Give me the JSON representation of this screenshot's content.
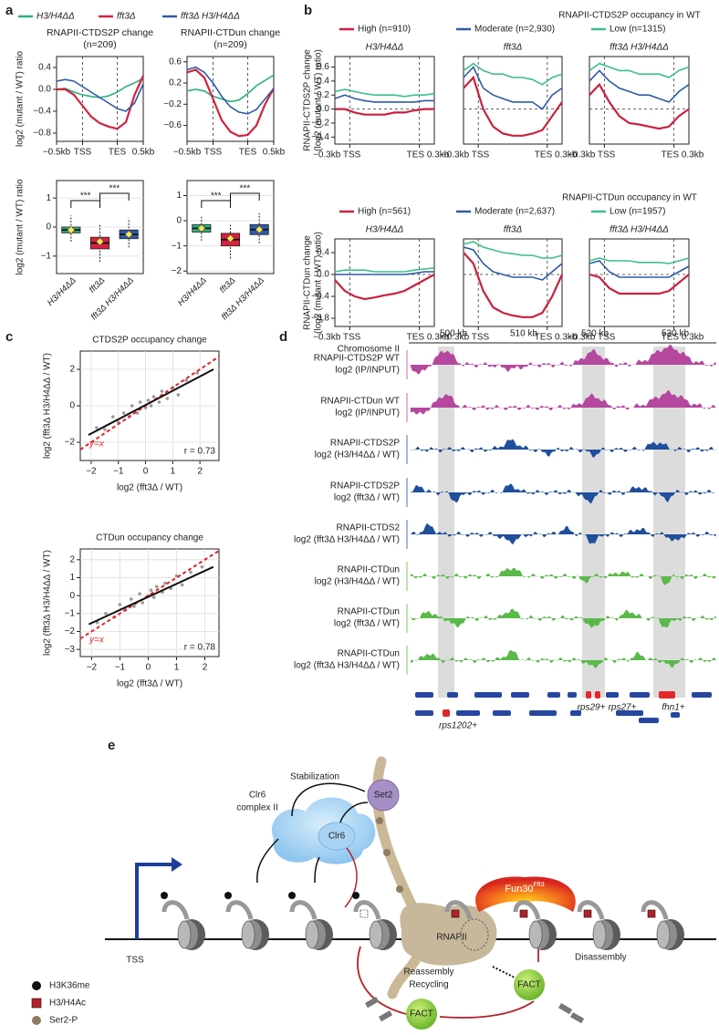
{
  "panel_labels": [
    "a",
    "b",
    "c",
    "d",
    "e"
  ],
  "chart_data": [
    {
      "type": "line",
      "title": "RNAPII-CTDS2P change",
      "subtitle": "(n=209)",
      "ylabel": "log2 (mutant / WT) ratio",
      "x": [
        0,
        1,
        2,
        3,
        4,
        5,
        6,
        7,
        8,
        9,
        10
      ],
      "xlim": [
        0,
        10
      ],
      "xticks": [
        {
          "value": 0,
          "label": "−0.5kb"
        },
        {
          "value": 3,
          "label": "TSS"
        },
        {
          "value": 7,
          "label": "TES"
        },
        {
          "value": 10,
          "label": "0.5kb"
        }
      ],
      "ylim": [
        -0.95,
        0.6
      ],
      "yticks": [
        0.4,
        {
          "value": 0,
          "label": "0.0"
        },
        {
          "value": -0.4,
          "label": "−0.4"
        },
        {
          "value": -0.8,
          "label": "−0.8"
        }
      ],
      "series": [
        {
          "name": "H3/H4ΔΔ",
          "color": "#2bb07f",
          "values": [
            0.0,
            0.02,
            -0.05,
            -0.1,
            -0.13,
            -0.15,
            -0.12,
            -0.05,
            0.05,
            0.12,
            0.2
          ]
        },
        {
          "name": "fft3Δ",
          "color": "#d6213f",
          "values": [
            0.0,
            0.0,
            -0.1,
            -0.3,
            -0.5,
            -0.62,
            -0.68,
            -0.72,
            -0.6,
            -0.1,
            0.25
          ]
        },
        {
          "name": "fft3Δ H3/H4ΔΔ",
          "color": "#2f5aa8",
          "values": [
            0.15,
            0.18,
            0.15,
            0.05,
            -0.05,
            -0.15,
            -0.25,
            -0.35,
            -0.4,
            -0.25,
            0.1
          ]
        }
      ]
    },
    {
      "type": "line",
      "title": "RNAPII-CTDun change",
      "subtitle": "(n=209)",
      "x": [
        0,
        1,
        2,
        3,
        4,
        5,
        6,
        7,
        8,
        9,
        10
      ],
      "xlim": [
        0,
        10
      ],
      "xticks": [
        {
          "value": 0,
          "label": "−0.5kb"
        },
        {
          "value": 3,
          "label": "TSS"
        },
        {
          "value": 7,
          "label": "TES"
        },
        {
          "value": 10,
          "label": "0.5kb"
        }
      ],
      "ylim": [
        -0.9,
        0.7
      ],
      "yticks": [
        0.6,
        0.2,
        {
          "value": -0.2,
          "label": "−0.2"
        },
        {
          "value": -0.6,
          "label": "−0.6"
        }
      ],
      "series": [
        {
          "color": "#2bb07f",
          "values": [
            0.05,
            0.08,
            0.05,
            -0.05,
            -0.1,
            -0.15,
            -0.12,
            0.0,
            0.15,
            0.25,
            0.35
          ]
        },
        {
          "color": "#d6213f",
          "values": [
            0.4,
            0.45,
            0.3,
            -0.1,
            -0.5,
            -0.72,
            -0.8,
            -0.78,
            -0.6,
            -0.2,
            0.1
          ]
        },
        {
          "color": "#2f5aa8",
          "values": [
            0.45,
            0.5,
            0.4,
            0.2,
            -0.05,
            -0.25,
            -0.35,
            -0.38,
            -0.3,
            -0.1,
            0.1
          ]
        }
      ]
    },
    {
      "type": "box",
      "ylabel": "log2 (mutant / WT) ratio",
      "categories": [
        "H3/H4ΔΔ",
        "fft3Δ",
        "fft3Δ H3/H4ΔΔ"
      ],
      "ylim": [
        -1.6,
        1.6
      ],
      "yticks": [
        1,
        0,
        {
          "value": -1,
          "label": "−1"
        }
      ],
      "annotations": [
        "***",
        "***"
      ],
      "boxes": [
        {
          "color": "#2bb07f",
          "min": -0.5,
          "q1": -0.2,
          "median": -0.1,
          "q3": 0.0,
          "max": 0.4,
          "mean": -0.1
        },
        {
          "color": "#d6213f",
          "min": -1.2,
          "q1": -0.75,
          "median": -0.55,
          "q3": -0.35,
          "max": 0.1,
          "mean": -0.5
        },
        {
          "color": "#2f5aa8",
          "min": -0.7,
          "q1": -0.4,
          "median": -0.25,
          "q3": -0.1,
          "max": 0.3,
          "mean": -0.25
        }
      ]
    },
    {
      "type": "box",
      "categories": [
        "H3/H4ΔΔ",
        "fft3Δ",
        "fft3Δ H3/H4ΔΔ"
      ],
      "ylim": [
        -2.1,
        1.6
      ],
      "yticks": [
        1,
        0,
        {
          "value": -1,
          "label": "−1"
        },
        {
          "value": -2,
          "label": "−2"
        }
      ],
      "annotations": [
        "***",
        "***"
      ],
      "boxes": [
        {
          "color": "#2bb07f",
          "min": -0.8,
          "q1": -0.45,
          "median": -0.3,
          "q3": -0.15,
          "max": 0.2,
          "mean": -0.3
        },
        {
          "color": "#d6213f",
          "min": -1.5,
          "q1": -1.0,
          "median": -0.75,
          "q3": -0.5,
          "max": -0.1,
          "mean": -0.7
        },
        {
          "color": "#2f5aa8",
          "min": -0.9,
          "q1": -0.55,
          "median": -0.35,
          "q3": -0.15,
          "max": 0.3,
          "mean": -0.35
        }
      ]
    },
    {
      "type": "line",
      "title": "H3/H4ΔΔ",
      "legend_title": "RNAPII-CTDS2P occupancy in WT",
      "ylabel": [
        "RNAPII-CTDS2P change",
        "(log2 (mutant / WT) ratio)"
      ],
      "ref_line": 0,
      "x": [
        0,
        1,
        2,
        3,
        4,
        5,
        6,
        7,
        8,
        9,
        10
      ],
      "xlim": [
        0,
        10
      ],
      "xticks": [
        {
          "value": 1.5,
          "label": "−0.3kb TSS"
        },
        {
          "value": 8.5,
          "label": "TES 0.3kb"
        }
      ],
      "ylim": [
        -0.5,
        0.75
      ],
      "yticks": [
        0.6,
        0.4,
        0.2,
        {
          "value": 0,
          "label": "0.0"
        },
        {
          "value": -0.2,
          "label": "−0.2"
        },
        {
          "value": -0.4,
          "label": "−0.4"
        }
      ],
      "series": [
        {
          "name": "High (n=910)",
          "color": "#c8213f",
          "values": [
            0.0,
            0.0,
            -0.05,
            -0.08,
            -0.08,
            -0.08,
            -0.05,
            -0.05,
            -0.02,
            0.0,
            0.0
          ]
        },
        {
          "name": "Moderate (n=2,930)",
          "color": "#2f5aa8",
          "values": [
            0.15,
            0.2,
            0.15,
            0.12,
            0.1,
            0.1,
            0.1,
            0.1,
            0.1,
            0.12,
            0.12
          ]
        },
        {
          "name": "Low (n=1315)",
          "color": "#3cbf8c",
          "values": [
            0.25,
            0.28,
            0.25,
            0.22,
            0.2,
            0.2,
            0.2,
            0.18,
            0.2,
            0.2,
            0.22
          ]
        }
      ]
    },
    {
      "type": "line",
      "title": "fft3Δ",
      "ref_line": 0,
      "x": [
        0,
        1,
        2,
        3,
        4,
        5,
        6,
        7,
        8,
        9,
        10
      ],
      "xlim": [
        0,
        10
      ],
      "xticks": [
        {
          "value": 1.5,
          "label": "−0.3kb TSS"
        },
        {
          "value": 8.5,
          "label": "TES 0.3kb"
        }
      ],
      "ylim": [
        -0.5,
        0.75
      ],
      "series": [
        {
          "color": "#c8213f",
          "values": [
            0.3,
            0.45,
            0.0,
            -0.25,
            -0.35,
            -0.38,
            -0.38,
            -0.35,
            -0.3,
            -0.1,
            0.1
          ]
        },
        {
          "color": "#2f5aa8",
          "values": [
            0.45,
            0.6,
            0.3,
            0.2,
            0.15,
            0.1,
            0.1,
            0.1,
            0.0,
            0.2,
            0.3
          ]
        },
        {
          "color": "#3cbf8c",
          "values": [
            0.55,
            0.65,
            0.55,
            0.5,
            0.5,
            0.45,
            0.45,
            0.42,
            0.35,
            0.45,
            0.5
          ]
        }
      ]
    },
    {
      "type": "line",
      "title": "fft3Δ H3/H4ΔΔ",
      "ref_line": 0,
      "x": [
        0,
        1,
        2,
        3,
        4,
        5,
        6,
        7,
        8,
        9,
        10
      ],
      "xlim": [
        0,
        10
      ],
      "xticks": [
        {
          "value": 1.5,
          "label": "−0.3kb TSS"
        },
        {
          "value": 8.5,
          "label": "TES 0.3kb"
        }
      ],
      "ylim": [
        -0.5,
        0.75
      ],
      "series": [
        {
          "color": "#c8213f",
          "values": [
            0.2,
            0.35,
            0.1,
            -0.1,
            -0.2,
            -0.22,
            -0.25,
            -0.28,
            -0.25,
            -0.1,
            0.0
          ]
        },
        {
          "color": "#2f5aa8",
          "values": [
            0.4,
            0.55,
            0.4,
            0.3,
            0.25,
            0.2,
            0.2,
            0.15,
            0.1,
            0.25,
            0.35
          ]
        },
        {
          "color": "#3cbf8c",
          "values": [
            0.55,
            0.65,
            0.6,
            0.55,
            0.55,
            0.5,
            0.5,
            0.5,
            0.45,
            0.55,
            0.6
          ]
        }
      ]
    },
    {
      "type": "line",
      "title": "H3/H4ΔΔ",
      "legend_title": "RNAPII-CTDun occupancy in WT",
      "ylabel": [
        "RNAPII-CTDun change",
        "(log2 (mutant / WT) ratio)"
      ],
      "ref_line": 0,
      "x": [
        0,
        1,
        2,
        3,
        4,
        5,
        6,
        7,
        8,
        9,
        10
      ],
      "xlim": [
        0,
        10
      ],
      "xticks": [
        {
          "value": 1.5,
          "label": "−0.3kb TSS"
        },
        {
          "value": 8.5,
          "label": "TES 0.3kb"
        }
      ],
      "ylim": [
        -0.95,
        0.65
      ],
      "yticks": [
        0.4,
        {
          "value": 0,
          "label": "0.0"
        },
        {
          "value": -0.4,
          "label": "−0.4"
        },
        {
          "value": -0.8,
          "label": "−0.8"
        }
      ],
      "series": [
        {
          "name": "High (n=561)",
          "color": "#c8213f",
          "values": [
            -0.1,
            -0.3,
            -0.4,
            -0.45,
            -0.42,
            -0.38,
            -0.35,
            -0.3,
            -0.2,
            -0.1,
            0.0
          ]
        },
        {
          "name": "Moderate (n=2,637)",
          "color": "#2f5aa8",
          "values": [
            0.0,
            0.0,
            0.0,
            0.0,
            0.0,
            0.0,
            0.0,
            0.0,
            0.02,
            0.05,
            0.05
          ]
        },
        {
          "name": "Low (n=1957)",
          "color": "#3cbf8c",
          "values": [
            0.05,
            0.08,
            0.08,
            0.08,
            0.05,
            0.05,
            0.05,
            0.05,
            0.08,
            0.1,
            0.12
          ]
        }
      ]
    },
    {
      "type": "line",
      "title": "fft3Δ",
      "ref_line": 0,
      "x": [
        0,
        1,
        2,
        3,
        4,
        5,
        6,
        7,
        8,
        9,
        10
      ],
      "xlim": [
        0,
        10
      ],
      "xticks": [
        {
          "value": 1.5,
          "label": "−0.3kb TSS"
        },
        {
          "value": 8.5,
          "label": "TES 0.3kb"
        }
      ],
      "ylim": [
        -0.95,
        0.65
      ],
      "series": [
        {
          "color": "#c8213f",
          "values": [
            0.4,
            0.2,
            -0.3,
            -0.6,
            -0.7,
            -0.75,
            -0.78,
            -0.78,
            -0.7,
            -0.4,
            0.0
          ]
        },
        {
          "color": "#2f5aa8",
          "values": [
            0.5,
            0.45,
            0.2,
            0.05,
            0.0,
            -0.05,
            -0.05,
            -0.05,
            -0.1,
            0.05,
            0.2
          ]
        },
        {
          "color": "#3cbf8c",
          "values": [
            0.55,
            0.6,
            0.5,
            0.45,
            0.4,
            0.38,
            0.35,
            0.35,
            0.3,
            0.3,
            0.35
          ]
        }
      ]
    },
    {
      "type": "line",
      "title": "fft3Δ H3/H4ΔΔ",
      "ref_line": 0,
      "x": [
        0,
        1,
        2,
        3,
        4,
        5,
        6,
        7,
        8,
        9,
        10
      ],
      "xlim": [
        0,
        10
      ],
      "xticks": [
        {
          "value": 1.5,
          "label": "−0.3kb TSS"
        },
        {
          "value": 8.5,
          "label": "TES 0.3kb"
        }
      ],
      "ylim": [
        -0.95,
        0.65
      ],
      "series": [
        {
          "color": "#c8213f",
          "values": [
            0.0,
            -0.05,
            -0.25,
            -0.35,
            -0.35,
            -0.35,
            -0.35,
            -0.35,
            -0.3,
            -0.15,
            0.0
          ]
        },
        {
          "color": "#2f5aa8",
          "values": [
            0.2,
            0.25,
            0.05,
            -0.05,
            -0.05,
            -0.05,
            -0.05,
            -0.05,
            -0.05,
            0.05,
            0.15
          ]
        },
        {
          "color": "#3cbf8c",
          "values": [
            0.25,
            0.3,
            0.25,
            0.25,
            0.25,
            0.22,
            0.22,
            0.22,
            0.2,
            0.25,
            0.3
          ]
        }
      ]
    },
    {
      "type": "scatter",
      "title": "CTDS2P occupancy change",
      "xlabel": "log2 (fft3Δ / WT)",
      "ylabel": "log2 (fft3Δ H3/H4ΔΔ / WT)",
      "xlim": [
        -2.4,
        2.7
      ],
      "xticks": [
        {
          "value": -2,
          "label": "−2"
        },
        {
          "value": -1,
          "label": "−1"
        },
        0,
        1,
        2
      ],
      "ylim": [
        -3,
        3
      ],
      "yticks": [
        {
          "value": -2,
          "label": "−2"
        },
        0,
        2
      ],
      "color": "#9a9a9a",
      "x": [
        -1.8,
        -1.5,
        -1.2,
        -1.0,
        -0.8,
        -0.6,
        -0.5,
        -0.3,
        -0.2,
        0,
        0.1,
        0.2,
        0.3,
        0.5,
        0.6,
        0.8,
        1.0,
        1.2,
        1.5,
        1.9
      ],
      "y": [
        -1.2,
        -1.3,
        -0.6,
        -0.9,
        -0.4,
        -0.6,
        0.0,
        -0.4,
        0.2,
        -0.1,
        0.3,
        0.0,
        0.5,
        0.2,
        0.8,
        0.4,
        1.0,
        0.6,
        1.4,
        1.8
      ],
      "fit": {
        "x": [
          -2.1,
          2.5
        ],
        "y": [
          -1.6,
          2.0
        ]
      },
      "annotations": [
        "y=x",
        "r = 0.73"
      ]
    },
    {
      "type": "scatter",
      "title": "CTDun occupancy change",
      "xlabel": "log2 (fft3Δ / WT)",
      "ylabel": "log2 (fft3Δ H3/H4ΔΔ / WT)",
      "xlim": [
        -2.4,
        2.5
      ],
      "xticks": [
        {
          "value": -2,
          "label": "−2"
        },
        {
          "value": -1,
          "label": "−1"
        },
        0,
        1,
        2
      ],
      "ylim": [
        -3.4,
        2.6
      ],
      "yticks": [
        {
          "value": -3,
          "label": "−3"
        },
        {
          "value": -2,
          "label": "−2"
        },
        {
          "value": -1,
          "label": "−1"
        },
        0,
        1,
        2
      ],
      "color": "#9a9a9a",
      "x": [
        -1.8,
        -1.5,
        -1.2,
        -1.0,
        -0.8,
        -0.6,
        -0.5,
        -0.3,
        -0.2,
        0,
        0.1,
        0.2,
        0.3,
        0.5,
        0.6,
        0.8,
        1.0,
        1.2,
        1.5,
        1.9
      ],
      "y": [
        -1.5,
        -1.0,
        -1.2,
        -0.5,
        -0.8,
        -0.2,
        -0.6,
        0.1,
        -0.4,
        0.0,
        0.3,
        -0.1,
        0.5,
        0.2,
        0.7,
        0.4,
        1.1,
        0.6,
        1.3,
        1.6
      ],
      "fit": {
        "x": [
          -2.1,
          2.3
        ],
        "y": [
          -1.6,
          1.6
        ]
      },
      "annotations": [
        "y=x",
        "r = 0.78"
      ]
    }
  ],
  "panel_d": {
    "chromosome": "Chromosome II",
    "positions": [
      "500 kb",
      "510 kb",
      "520 kb",
      "530 kb"
    ],
    "tracks": [
      [
        "RNAPII-CTDS2P WT",
        "log2 (IP/INPUT)"
      ],
      [
        "RNAPII-CTDun WT",
        "log2 (IP/INPUT)"
      ],
      [
        "RNAPII-CTDS2P",
        "log2 (H3/H4ΔΔ / WT)"
      ],
      [
        "RNAPII-CTDS2P",
        "log2 (fft3Δ / WT)"
      ],
      [
        "RNAPII-CTDS2",
        "log2 (fft3Δ H3/H4ΔΔ / WT)"
      ],
      [
        "RNAPII-CTDun",
        "log2 (H3/H4ΔΔ / WT)"
      ],
      [
        "RNAPII-CTDun",
        "log2 (fft3Δ / WT)"
      ],
      [
        "RNAPII-CTDun",
        "log2 (fft3Δ H3/H4ΔΔ / WT)"
      ]
    ],
    "genes": [
      "rps1202+",
      "rps29+",
      "rps27+",
      "fhn1+"
    ]
  },
  "panel_e": {
    "stabilization": "Stabilization",
    "clr6_complex": [
      "Clr6",
      "complex II"
    ],
    "clr6": "Clr6",
    "set2": "Set2",
    "fun30": "Fun30",
    "fun30_sup": "Fft3",
    "rnapii": "RNAPII",
    "disassembly": "Disassembly",
    "fact_top": "FACT",
    "reassembly": [
      "Reassembly",
      "Recycling"
    ],
    "fact_bottom": "FACT",
    "tss": "TSS",
    "legend": [
      "H3K36me",
      "H3/H4Ac",
      "Ser2-P"
    ]
  }
}
